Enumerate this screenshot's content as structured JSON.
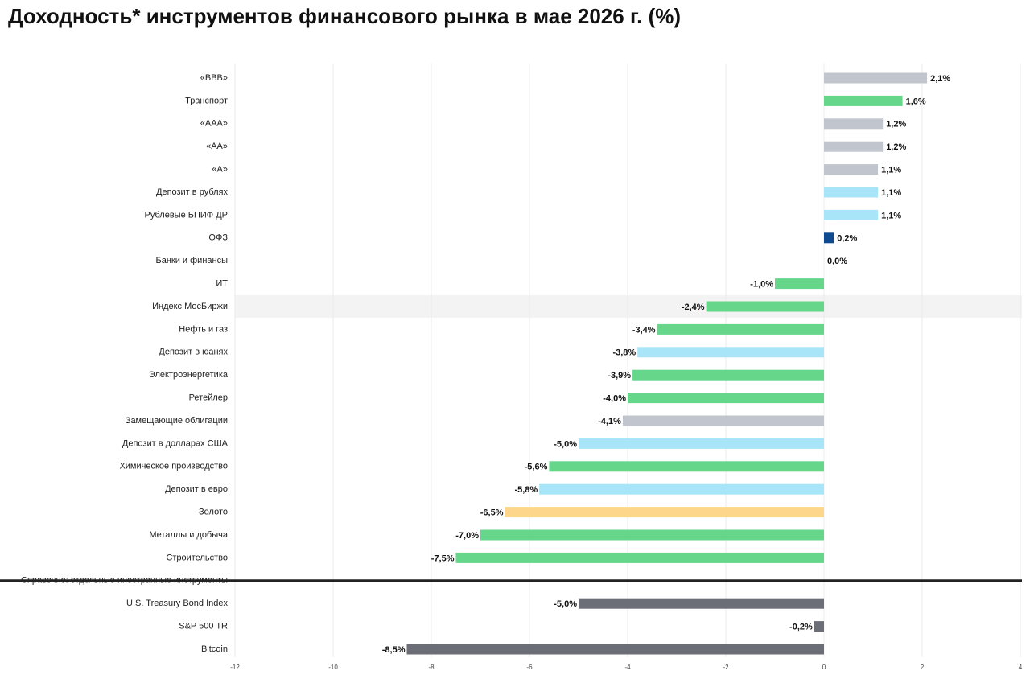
{
  "chart_data": {
    "type": "barh",
    "title": "Доходность* инструментов финансового рынка в мае 2026 г. (%)",
    "categories": [
      "«BBB»",
      "Транспорт",
      "«AAA»",
      "«AA»",
      "«A»",
      "Депозит в рублях",
      "Рублевые БПИФ ДР",
      "ОФЗ",
      "Банки и финансы",
      "ИТ",
      "Индекс МосБиржи",
      "Нефть и газ",
      "Депозит в юанях",
      "Электроэнергетика",
      "Ретейлер",
      "Замещающие облигации",
      "Депозит в долларах США",
      "Химическое производство",
      "Депозит в евро",
      "Золото",
      "Металлы и добыча",
      "Строительство",
      "Справочно: отдельные иностранные инструменты",
      "U.S. Treasury Bond Index",
      "S&P 500 TR",
      "Bitcoin"
    ],
    "values": [
      2.1,
      1.6,
      1.2,
      1.2,
      1.1,
      1.1,
      1.1,
      0.2,
      0.0,
      -1.0,
      -2.4,
      -3.4,
      -3.8,
      -3.9,
      -4.0,
      -4.1,
      -5.0,
      -5.6,
      -5.8,
      -6.5,
      -7.0,
      -7.5,
      null,
      -5.0,
      -0.2,
      -8.5
    ],
    "value_labels": [
      "2,1%",
      "1,6%",
      "1,2%",
      "1,2%",
      "1,1%",
      "1,1%",
      "1,1%",
      "0,2%",
      "0,0%",
      "-1,0%",
      "-2,4%",
      "-3,4%",
      "-3,8%",
      "-3,9%",
      "-4,0%",
      "-4,1%",
      "-5,0%",
      "-5,6%",
      "-5,8%",
      "-6,5%",
      "-7,0%",
      "-7,5%",
      null,
      "-5,0%",
      "-0,2%",
      "-8,5%"
    ],
    "colors": [
      "#c1c5ce",
      "#66d68a",
      "#c1c5ce",
      "#c1c5ce",
      "#c1c5ce",
      "#a9e5f9",
      "#a9e5f9",
      "#0d4a8f",
      "#66d68a",
      "#66d68a",
      "#66d68a",
      "#66d68a",
      "#a9e5f9",
      "#66d68a",
      "#66d68a",
      "#c1c5ce",
      "#a9e5f9",
      "#66d68a",
      "#a9e5f9",
      "#fdd68b",
      "#66d68a",
      "#66d68a",
      null,
      "#6b6e76",
      "#6b6e76",
      "#6b6e76"
    ],
    "highlight": 10,
    "xlim": [
      -12,
      4
    ],
    "xticks": [
      -12,
      -10,
      -8,
      -6,
      -4,
      -2,
      0,
      2,
      4
    ],
    "grid": true
  }
}
